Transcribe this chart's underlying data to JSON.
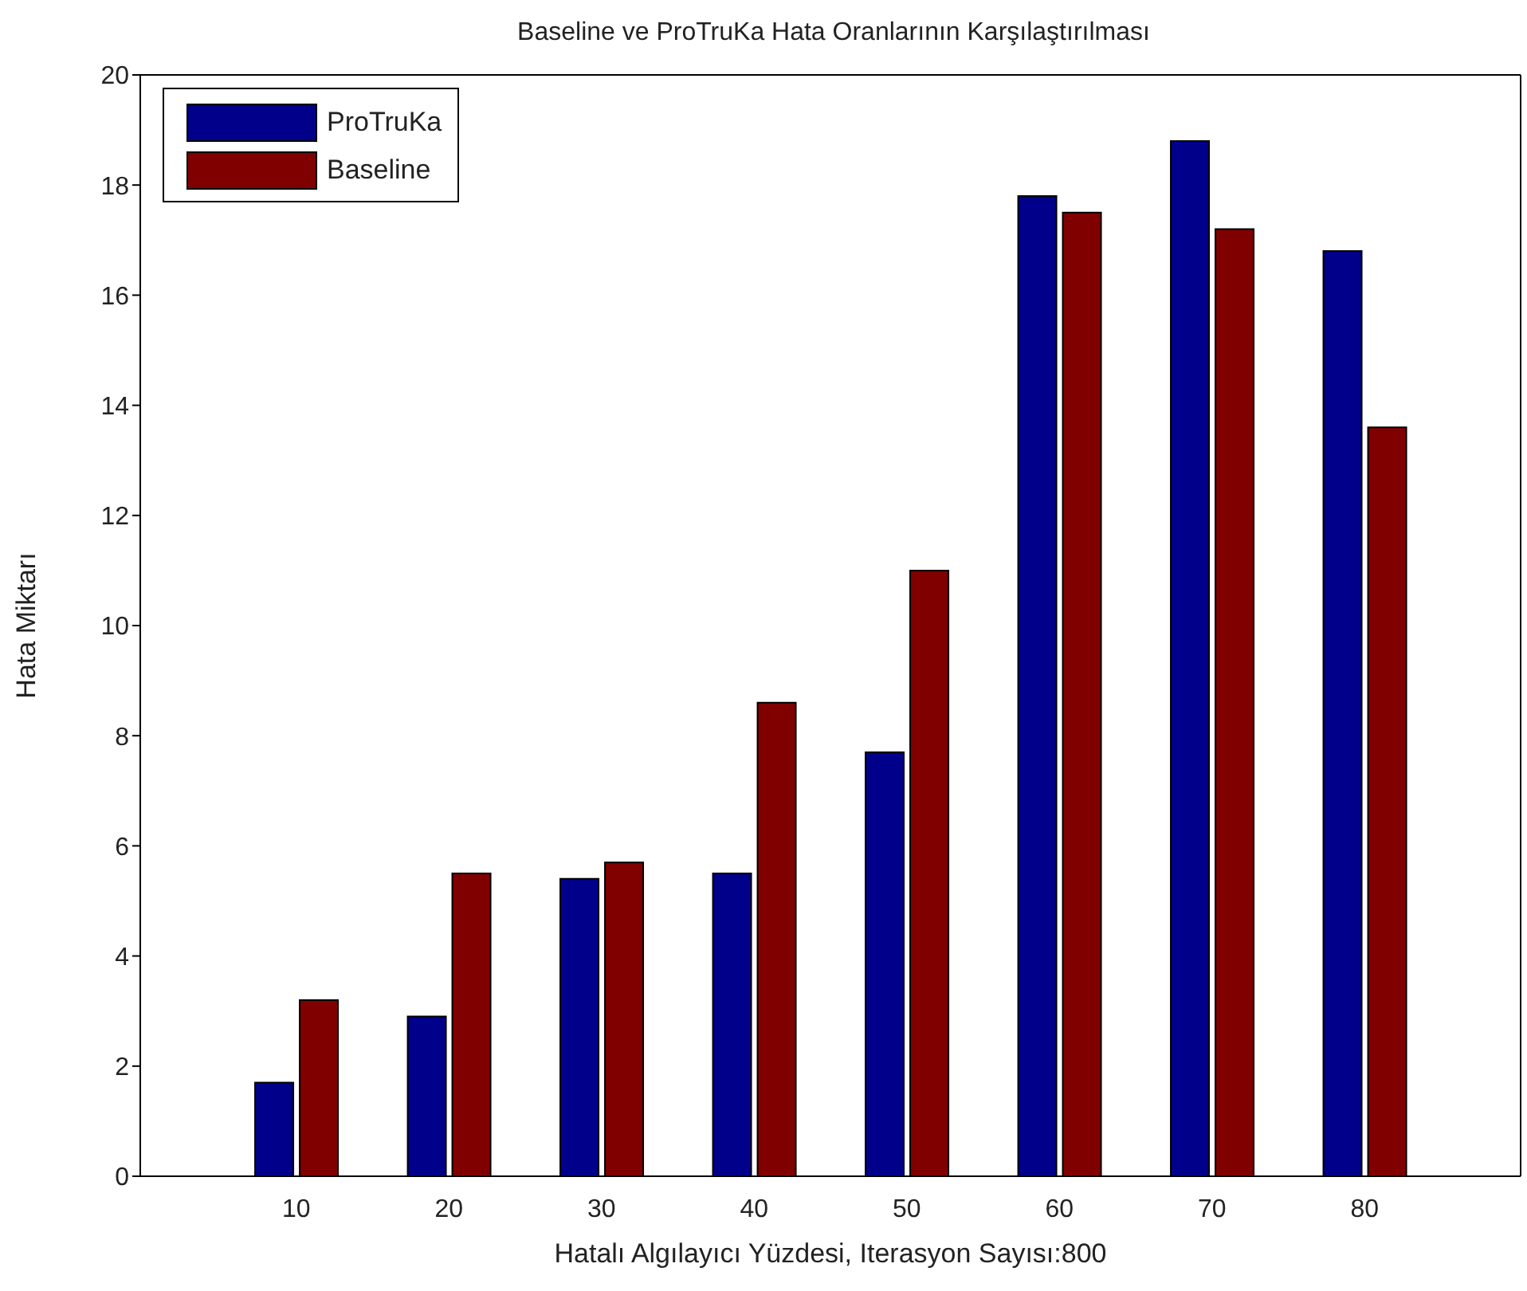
{
  "chart_data": {
    "type": "bar",
    "title": "Baseline ve ProTruKa Hata Oranlarının Karşılaştırılması",
    "xlabel": "Hatalı Algılayıcı Yüzdesi, Iterasyon Sayısı:800",
    "ylabel": "Hata Miktarı",
    "categories": [
      "10",
      "20",
      "30",
      "40",
      "50",
      "60",
      "70",
      "80"
    ],
    "series": [
      {
        "name": "ProTruKa",
        "color": "#00008b",
        "values": [
          1.7,
          2.9,
          5.4,
          5.5,
          7.7,
          17.8,
          18.8,
          16.8
        ]
      },
      {
        "name": "Baseline",
        "color": "#800000",
        "values": [
          3.2,
          5.5,
          5.7,
          8.6,
          11.0,
          17.5,
          17.2,
          13.6
        ]
      }
    ],
    "ylim": [
      0,
      20
    ],
    "yticks": [
      0,
      2,
      4,
      6,
      8,
      10,
      12,
      14,
      16,
      18,
      20
    ],
    "legend": "top left"
  }
}
